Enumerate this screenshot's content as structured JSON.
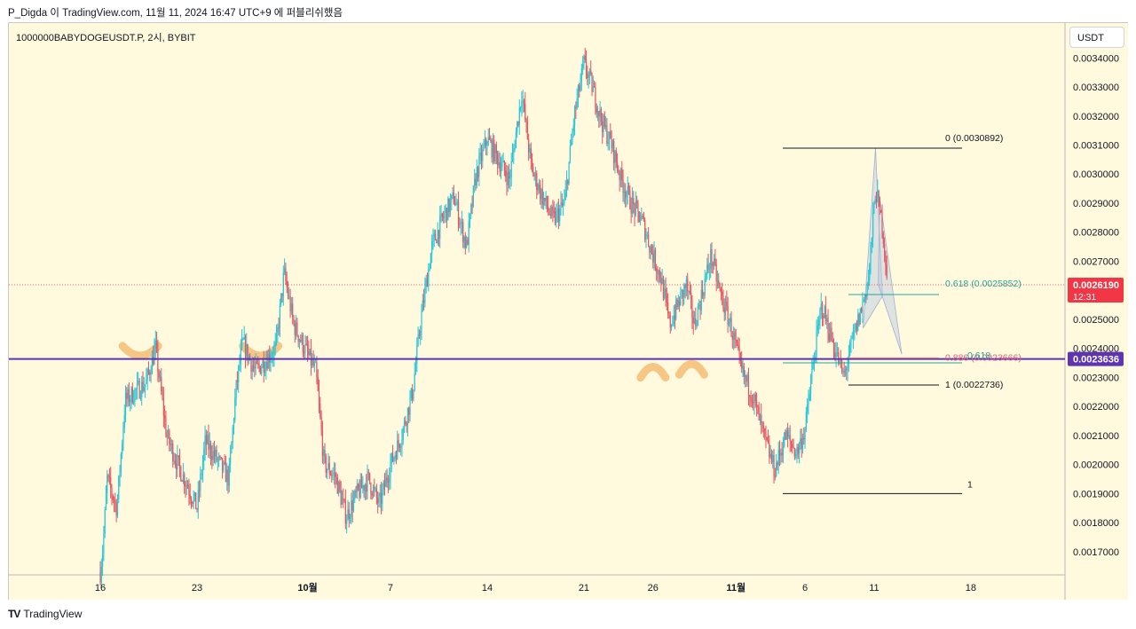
{
  "header": {
    "author": "P_Digda",
    "publish_text": "이 TradingView.com, 11월 11, 2024 16:47 UTC+9 에 퍼블리쉬했음"
  },
  "symbol": {
    "label": "1000000BABYDOGEUSDT.P, 2시, BYBIT"
  },
  "price_axis": {
    "currency": "USDT"
  },
  "footer": {
    "logo_mark": "TV",
    "logo_text": "TradingView"
  },
  "colors": {
    "chart_bg": "#fff9de",
    "up": "#26c6da",
    "down": "#e35561",
    "support_line": "#5e35b1",
    "last_price_badge": "#f23645",
    "level_badge": "#5e35b1",
    "highlight": "#f5c07a",
    "fib_teal": "#26a69a",
    "fib_pink": "#e0607e",
    "pattern_fill": "#b8c7e0"
  },
  "chart_data": {
    "type": "candlestick",
    "interval": "2시",
    "ylim": [
      0.00162,
      0.00352
    ],
    "y_ticks": [
      0.0017,
      0.0018,
      0.0019,
      0.002,
      0.0021,
      0.0022,
      0.0023,
      0.0024,
      0.0025,
      0.0026,
      0.0027,
      0.0028,
      0.0029,
      0.003,
      0.0031,
      0.0032,
      0.0033,
      0.0034
    ],
    "y_tick_labels": [
      "0.0017000",
      "0.0018000",
      "0.0019000",
      "0.0020000",
      "0.0021000",
      "0.0022000",
      "0.0023000",
      "0.0024000",
      "0.0025000",
      "0.0026000",
      "0.0027000",
      "0.0028000",
      "0.0029000",
      "0.0030000",
      "0.0031000",
      "0.0032000",
      "0.0033000",
      "0.0034000"
    ],
    "x_range_days": [
      -1,
      40
    ],
    "x_ticks": [
      {
        "day": 0,
        "label": "16"
      },
      {
        "day": 7,
        "label": "23"
      },
      {
        "day": 15,
        "label": "10월"
      },
      {
        "day": 21,
        "label": "7"
      },
      {
        "day": 28,
        "label": "14"
      },
      {
        "day": 35,
        "label": "21"
      },
      {
        "day": 40,
        "label": "26"
      },
      {
        "day": 46,
        "label": "11월"
      },
      {
        "day": 51,
        "label": "6"
      },
      {
        "day": 56,
        "label": "11"
      },
      {
        "day": 63,
        "label": "18"
      }
    ],
    "price_path": [
      [
        0.0,
        0.00163
      ],
      [
        0.2,
        0.00172
      ],
      [
        0.5,
        0.00195
      ],
      [
        1.2,
        0.00185
      ],
      [
        1.8,
        0.00222
      ],
      [
        2.5,
        0.00225
      ],
      [
        3.3,
        0.00228
      ],
      [
        4.0,
        0.0024
      ],
      [
        4.8,
        0.0021
      ],
      [
        5.6,
        0.002
      ],
      [
        6.3,
        0.00193
      ],
      [
        7.0,
        0.00185
      ],
      [
        7.6,
        0.00208
      ],
      [
        8.4,
        0.00202
      ],
      [
        9.3,
        0.00195
      ],
      [
        9.8,
        0.00225
      ],
      [
        10.3,
        0.00242
      ],
      [
        11.2,
        0.00232
      ],
      [
        12.0,
        0.00236
      ],
      [
        12.7,
        0.0024
      ],
      [
        13.3,
        0.00266
      ],
      [
        14.0,
        0.00248
      ],
      [
        14.8,
        0.0024
      ],
      [
        15.6,
        0.00232
      ],
      [
        16.2,
        0.002
      ],
      [
        17.0,
        0.00196
      ],
      [
        17.8,
        0.00182
      ],
      [
        18.6,
        0.0019
      ],
      [
        19.4,
        0.00195
      ],
      [
        20.2,
        0.00186
      ],
      [
        21.0,
        0.002
      ],
      [
        21.8,
        0.0021
      ],
      [
        22.6,
        0.00225
      ],
      [
        23.2,
        0.0025
      ],
      [
        24.0,
        0.00275
      ],
      [
        24.8,
        0.00285
      ],
      [
        25.6,
        0.00292
      ],
      [
        26.5,
        0.00275
      ],
      [
        27.2,
        0.003
      ],
      [
        28.0,
        0.00312
      ],
      [
        28.8,
        0.00305
      ],
      [
        29.6,
        0.00298
      ],
      [
        30.5,
        0.00328
      ],
      [
        31.2,
        0.00302
      ],
      [
        32.0,
        0.00292
      ],
      [
        32.8,
        0.00284
      ],
      [
        33.6,
        0.0029
      ],
      [
        34.3,
        0.0032
      ],
      [
        35.0,
        0.00338
      ],
      [
        35.6,
        0.0033
      ],
      [
        36.3,
        0.00318
      ],
      [
        37.0,
        0.0031
      ],
      [
        37.7,
        0.00298
      ],
      [
        38.4,
        0.0029
      ],
      [
        39.2,
        0.00284
      ],
      [
        40.0,
        0.00272
      ],
      [
        40.6,
        0.00264
      ],
      [
        41.2,
        0.00248
      ],
      [
        41.8,
        0.00255
      ],
      [
        42.4,
        0.00262
      ],
      [
        43.0,
        0.00248
      ],
      [
        43.6,
        0.0026
      ],
      [
        44.2,
        0.00272
      ],
      [
        44.8,
        0.0026
      ],
      [
        45.6,
        0.00248
      ],
      [
        46.4,
        0.00232
      ],
      [
        47.2,
        0.00224
      ],
      [
        48.0,
        0.0021
      ],
      [
        48.8,
        0.00198
      ],
      [
        49.6,
        0.0021
      ],
      [
        50.4,
        0.00204
      ],
      [
        51.0,
        0.00212
      ],
      [
        51.6,
        0.00235
      ],
      [
        52.2,
        0.00255
      ],
      [
        53.0,
        0.00242
      ],
      [
        53.8,
        0.0023
      ],
      [
        54.4,
        0.00242
      ],
      [
        55.0,
        0.00252
      ],
      [
        55.6,
        0.00264
      ],
      [
        56.1,
        0.00295
      ],
      [
        56.6,
        0.00282
      ],
      [
        57.0,
        0.00262
      ]
    ],
    "support_level": {
      "price": 0.0023636,
      "label": "0.0023636"
    },
    "last_price": {
      "price": 0.002619,
      "label": "0.0026190",
      "countdown": "12:31"
    },
    "fib_levels": [
      {
        "label": "0 (0.0030892)",
        "price": 0.0030892,
        "color": "#131722"
      },
      {
        "label": "0.618 (0.0025852)",
        "price": 0.0025852,
        "color": "#26a69a"
      },
      {
        "label": "0.886 (0.0023666)",
        "price": 0.0023666,
        "color": "#e0607e"
      },
      {
        "label": "1 (0.0022736)",
        "price": 0.0022736,
        "color": "#131722"
      }
    ],
    "extra_fib_labels": [
      {
        "label": "0.618",
        "price": 0.00235
      },
      {
        "label": "1",
        "price": 0.0019
      }
    ],
    "highlight_marks": [
      {
        "day": 2.9,
        "price": 0.00239,
        "shape": "cup"
      },
      {
        "day": 11.6,
        "price": 0.00239,
        "shape": "cup"
      },
      {
        "day": 40.0,
        "price": 0.00233,
        "shape": "arch"
      },
      {
        "day": 42.8,
        "price": 0.00234,
        "shape": "arch"
      }
    ]
  }
}
